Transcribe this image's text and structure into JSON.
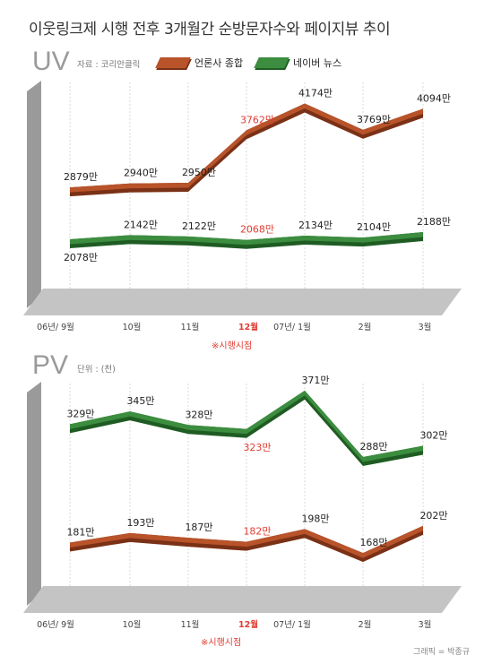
{
  "title": "이웃링크제 시행 전후 3개월간 순방문자수와 페이지뷰 추이",
  "colors": {
    "orange": "#b8532a",
    "orange_dark": "#7a3116",
    "green": "#3c8d3f",
    "green_dark": "#1f5c23",
    "highlight": "#e03c31",
    "wall": "#9a9a9a",
    "floor": "#c4c4c4"
  },
  "uv_panel": {
    "label": "UV",
    "source": "자료 : 코리안클릭",
    "legend": [
      {
        "name": "언론사 종합",
        "color": "#b8532a"
      },
      {
        "name": "네이버 뉴스",
        "color": "#3c8d3f"
      }
    ],
    "note": "※시행시점"
  },
  "pv_panel": {
    "label": "PV",
    "unit_note": "단위 : (천)",
    "note": "※시행시점"
  },
  "credit": "그래픽 = 박종규",
  "chart_data": [
    {
      "type": "line",
      "title": "UV",
      "categories": [
        "06년/ 9월",
        "10월",
        "11월",
        "12월",
        "07년/ 1월",
        "2월",
        "3월"
      ],
      "highlight_category": "12월",
      "series": [
        {
          "name": "언론사 종합",
          "values": [
            2879,
            2940,
            2950,
            3762,
            4174,
            3769,
            4094
          ],
          "labels": [
            "2879만",
            "2940만",
            "2950만",
            "3762만",
            "4174만",
            "3769만",
            "4094만"
          ]
        },
        {
          "name": "네이버 뉴스",
          "values": [
            2078,
            2142,
            2122,
            2068,
            2134,
            2104,
            2188
          ],
          "labels": [
            "2078만",
            "2142만",
            "2122만",
            "2068만",
            "2134만",
            "2104만",
            "2188만"
          ]
        }
      ],
      "ylim": [
        1400,
        4500
      ]
    },
    {
      "type": "line",
      "title": "PV",
      "categories": [
        "06년/ 9월",
        "10월",
        "11월",
        "12월",
        "07년/ 1월",
        "2월",
        "3월"
      ],
      "highlight_category": "12월",
      "series": [
        {
          "name": "네이버 뉴스",
          "values": [
            329,
            345,
            328,
            323,
            371,
            288,
            302
          ],
          "labels": [
            "329만",
            "345만",
            "328만",
            "323만",
            "371만",
            "288만",
            "302만"
          ]
        },
        {
          "name": "언론사 종합",
          "values": [
            181,
            193,
            187,
            182,
            198,
            168,
            202
          ],
          "labels": [
            "181만",
            "193만",
            "187만",
            "182만",
            "198만",
            "168만",
            "202만"
          ]
        }
      ],
      "ylim": [
        120,
        400
      ]
    }
  ]
}
